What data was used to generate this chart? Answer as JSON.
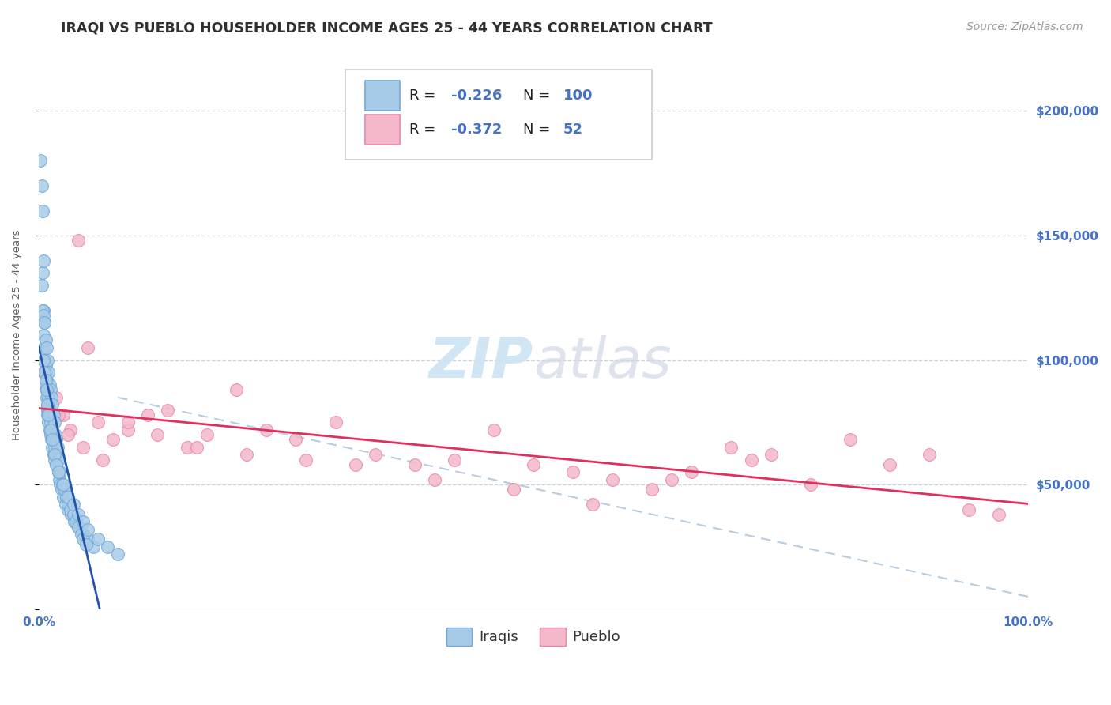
{
  "title": "IRAQI VS PUEBLO HOUSEHOLDER INCOME AGES 25 - 44 YEARS CORRELATION CHART",
  "source": "Source: ZipAtlas.com",
  "ylabel": "Householder Income Ages 25 - 44 years",
  "xlim": [
    0,
    1.0
  ],
  "ylim": [
    0,
    220000
  ],
  "yticks": [
    0,
    50000,
    100000,
    150000,
    200000
  ],
  "ytick_labels": [
    "",
    "$50,000",
    "$100,000",
    "$150,000",
    "$200,000"
  ],
  "xtick_labels": [
    "0.0%",
    "100.0%"
  ],
  "bg_color": "#ffffff",
  "grid_color": "#b8c8d8",
  "iraqi_color": "#a8cce8",
  "pueblo_color": "#f4b8ca",
  "iraqi_edge": "#70a8d8",
  "pueblo_edge": "#e888a8",
  "trend_iraqi_color": "#2255aa",
  "trend_pueblo_color": "#e03060",
  "ref_line_color": "#b8cce0",
  "title_color": "#303030",
  "axis_label_color": "#606060",
  "tick_label_color": "#4472c4",
  "legend_iraqi_R": "-0.226",
  "legend_iraqi_N": "100",
  "legend_pueblo_R": "-0.372",
  "legend_pueblo_N": "52",
  "watermark_color": "#cce4f4",
  "iraqi_x": [
    0.002,
    0.003,
    0.004,
    0.004,
    0.005,
    0.005,
    0.005,
    0.006,
    0.006,
    0.006,
    0.007,
    0.007,
    0.007,
    0.008,
    0.008,
    0.008,
    0.009,
    0.009,
    0.009,
    0.01,
    0.01,
    0.01,
    0.011,
    0.011,
    0.012,
    0.012,
    0.013,
    0.013,
    0.014,
    0.014,
    0.015,
    0.015,
    0.016,
    0.016,
    0.017,
    0.018,
    0.019,
    0.02,
    0.021,
    0.022,
    0.023,
    0.025,
    0.027,
    0.03,
    0.033,
    0.036,
    0.04,
    0.045,
    0.05,
    0.055,
    0.003,
    0.004,
    0.005,
    0.006,
    0.007,
    0.008,
    0.009,
    0.01,
    0.011,
    0.012,
    0.013,
    0.014,
    0.015,
    0.016,
    0.017,
    0.018,
    0.019,
    0.02,
    0.022,
    0.024,
    0.026,
    0.028,
    0.03,
    0.032,
    0.035,
    0.038,
    0.04,
    0.043,
    0.045,
    0.048,
    0.005,
    0.006,
    0.007,
    0.008,
    0.009,
    0.01,
    0.012,
    0.014,
    0.016,
    0.018,
    0.02,
    0.025,
    0.03,
    0.035,
    0.04,
    0.045,
    0.05,
    0.06,
    0.07,
    0.08
  ],
  "iraqi_y": [
    180000,
    170000,
    160000,
    135000,
    140000,
    120000,
    110000,
    115000,
    105000,
    100000,
    95000,
    98000,
    90000,
    88000,
    92000,
    85000,
    80000,
    82000,
    78000,
    85000,
    80000,
    75000,
    78000,
    72000,
    75000,
    70000,
    68000,
    72000,
    65000,
    70000,
    68000,
    62000,
    65000,
    60000,
    62000,
    58000,
    60000,
    55000,
    52000,
    50000,
    48000,
    45000,
    42000,
    40000,
    38000,
    35000,
    33000,
    30000,
    28000,
    25000,
    130000,
    120000,
    118000,
    115000,
    108000,
    105000,
    100000,
    95000,
    90000,
    88000,
    85000,
    82000,
    78000,
    75000,
    70000,
    68000,
    65000,
    60000,
    55000,
    50000,
    48000,
    45000,
    42000,
    40000,
    38000,
    35000,
    33000,
    30000,
    28000,
    26000,
    100000,
    95000,
    92000,
    88000,
    82000,
    78000,
    72000,
    68000,
    62000,
    58000,
    55000,
    50000,
    45000,
    42000,
    38000,
    35000,
    32000,
    28000,
    25000,
    22000
  ],
  "pueblo_x": [
    0.005,
    0.008,
    0.012,
    0.018,
    0.025,
    0.032,
    0.04,
    0.05,
    0.06,
    0.075,
    0.09,
    0.11,
    0.13,
    0.15,
    0.17,
    0.2,
    0.23,
    0.26,
    0.3,
    0.34,
    0.38,
    0.42,
    0.46,
    0.5,
    0.54,
    0.58,
    0.62,
    0.66,
    0.7,
    0.74,
    0.78,
    0.82,
    0.86,
    0.9,
    0.94,
    0.97,
    0.01,
    0.02,
    0.03,
    0.045,
    0.065,
    0.09,
    0.12,
    0.16,
    0.21,
    0.27,
    0.32,
    0.4,
    0.48,
    0.56,
    0.64,
    0.72
  ],
  "pueblo_y": [
    95000,
    88000,
    80000,
    85000,
    78000,
    72000,
    148000,
    105000,
    75000,
    68000,
    72000,
    78000,
    80000,
    65000,
    70000,
    88000,
    72000,
    68000,
    75000,
    62000,
    58000,
    60000,
    72000,
    58000,
    55000,
    52000,
    48000,
    55000,
    65000,
    62000,
    50000,
    68000,
    58000,
    62000,
    40000,
    38000,
    88000,
    78000,
    70000,
    65000,
    60000,
    75000,
    70000,
    65000,
    62000,
    60000,
    58000,
    52000,
    48000,
    42000,
    52000,
    60000
  ],
  "title_fontsize": 12.5,
  "axis_label_fontsize": 9.5,
  "tick_fontsize": 11,
  "legend_fontsize": 13,
  "source_fontsize": 10
}
